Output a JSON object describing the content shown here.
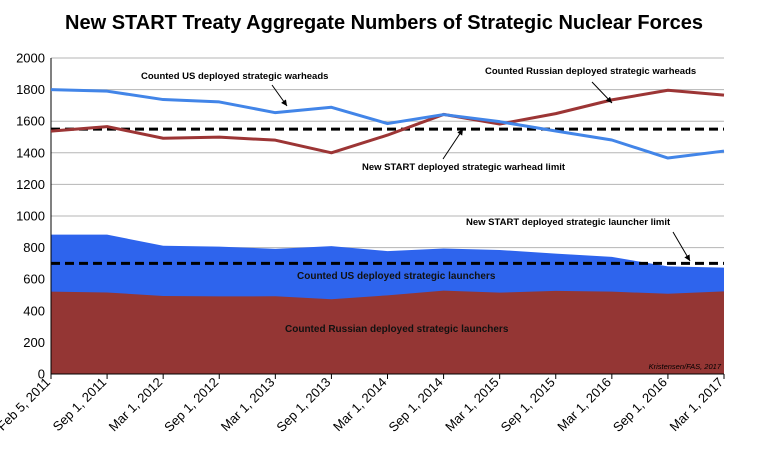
{
  "chart_data": {
    "type": "line",
    "title": "New START Treaty Aggregate Numbers of Strategic Nuclear Forces",
    "categories": [
      "Feb 5, 2011",
      "Sep 1, 2011",
      "Mar 1, 2012",
      "Sep 1, 2012",
      "Mar 1, 2013",
      "Sep 1, 2013",
      "Mar 1, 2014",
      "Sep 1, 2014",
      "Mar 1, 2015",
      "Sep 1, 2015",
      "Mar 1, 2016",
      "Sep 1, 2016",
      "Mar 1, 2017"
    ],
    "ylim": [
      0,
      2000
    ],
    "yticks": [
      "0",
      "200",
      "400",
      "600",
      "800",
      "1000",
      "1200",
      "1400",
      "1600",
      "1800",
      "2000"
    ],
    "grid": true,
    "series": [
      {
        "name": "Counted US deployed strategic warheads",
        "type": "line",
        "color": "#4285e8",
        "values": [
          1800,
          1790,
          1737,
          1722,
          1654,
          1688,
          1585,
          1642,
          1597,
          1538,
          1481,
          1367,
          1411
        ]
      },
      {
        "name": "Counted Russian deployed strategic warheads",
        "type": "line",
        "color": "#9c3535",
        "values": [
          1537,
          1566,
          1492,
          1499,
          1480,
          1400,
          1512,
          1643,
          1582,
          1648,
          1735,
          1796,
          1765
        ]
      },
      {
        "name": "Counted US deployed strategic launchers",
        "type": "area",
        "color": "#2e64ed",
        "values": [
          882,
          882,
          812,
          806,
          792,
          809,
          778,
          794,
          785,
          762,
          741,
          681,
          673
        ]
      },
      {
        "name": "Counted Russian deployed strategic launchers",
        "type": "area",
        "color": "#943634",
        "values": [
          521,
          516,
          494,
          491,
          492,
          473,
          498,
          528,
          515,
          526,
          521,
          508,
          523
        ]
      }
    ],
    "reference_lines": [
      {
        "name": "New START deployed strategic warhead limit",
        "value": 1550,
        "style": "dashed"
      },
      {
        "name": "New START deployed strategic launcher limit",
        "value": 700,
        "style": "dashed"
      }
    ],
    "annotations": {
      "us_warheads": "Counted US deployed strategic warheads",
      "ru_warheads": "Counted Russian deployed strategic warheads",
      "warhead_limit": "New START deployed strategic warhead limit",
      "launcher_limit": "New START deployed strategic launcher limit",
      "us_launchers": "Counted US deployed strategic launchers",
      "ru_launchers": "Counted Russian deployed strategic launchers",
      "credit": "Kristensen/FAS, 2017"
    },
    "colors": {
      "us_line": "#4285e8",
      "ru_line": "#9c3535",
      "us_area": "#2e64ed",
      "ru_area": "#943634",
      "limit_line": "#000000",
      "grid": "#b5b5b5"
    }
  }
}
